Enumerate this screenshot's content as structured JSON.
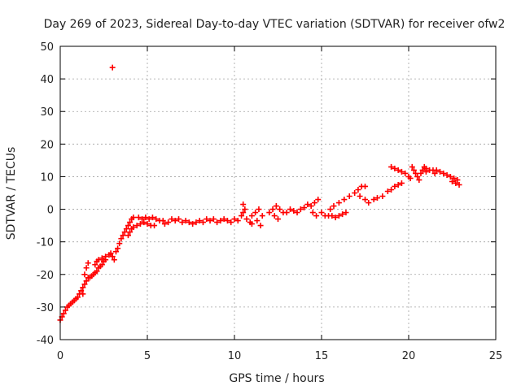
{
  "chart_data": {
    "type": "scatter",
    "title": "Day 269 of 2023, Sidereal Day-to-day VTEC variation (SDTVAR) for receiver ofw2",
    "xlabel": "GPS time / hours",
    "ylabel": "SDTVAR / TECUs",
    "xlim": [
      0,
      25
    ],
    "ylim": [
      -40,
      50
    ],
    "xticks": [
      0,
      5,
      10,
      15,
      20,
      25
    ],
    "yticks": [
      -40,
      -30,
      -20,
      -10,
      0,
      10,
      20,
      30,
      40,
      50
    ],
    "grid": true,
    "marker": "+",
    "color": "#ff0000",
    "series": [
      {
        "name": "SDTVAR",
        "points": [
          [
            0.0,
            -34
          ],
          [
            0.1,
            -33
          ],
          [
            0.2,
            -32
          ],
          [
            0.3,
            -31
          ],
          [
            0.4,
            -30
          ],
          [
            0.5,
            -29.5
          ],
          [
            0.6,
            -29
          ],
          [
            0.7,
            -28.5
          ],
          [
            0.8,
            -28
          ],
          [
            0.9,
            -27.5
          ],
          [
            1.0,
            -27
          ],
          [
            1.1,
            -26
          ],
          [
            1.2,
            -25
          ],
          [
            1.3,
            -24
          ],
          [
            1.4,
            -23
          ],
          [
            1.5,
            -22
          ],
          [
            1.6,
            -21
          ],
          [
            1.3,
            -26
          ],
          [
            1.4,
            -20
          ],
          [
            1.5,
            -18
          ],
          [
            1.6,
            -16.5
          ],
          [
            1.7,
            -21
          ],
          [
            1.8,
            -20.5
          ],
          [
            1.9,
            -20
          ],
          [
            2.0,
            -19.5
          ],
          [
            2.1,
            -19
          ],
          [
            2.2,
            -18
          ],
          [
            2.3,
            -17.5
          ],
          [
            2.4,
            -17
          ],
          [
            2.5,
            -16
          ],
          [
            2.6,
            -15.5
          ],
          [
            2.0,
            -17
          ],
          [
            2.1,
            -16
          ],
          [
            2.2,
            -15.5
          ],
          [
            2.4,
            -15
          ],
          [
            2.6,
            -14.5
          ],
          [
            2.8,
            -14
          ],
          [
            2.9,
            -13.5
          ],
          [
            3.0,
            -14.5
          ],
          [
            3.1,
            -15.5
          ],
          [
            3.2,
            -13
          ],
          [
            3.3,
            -12
          ],
          [
            3.4,
            -10.5
          ],
          [
            3.5,
            -9
          ],
          [
            3.6,
            -8
          ],
          [
            3.7,
            -7
          ],
          [
            3.8,
            -6
          ],
          [
            3.9,
            -5
          ],
          [
            4.0,
            -4
          ],
          [
            4.1,
            -3
          ],
          [
            4.2,
            -2.5
          ],
          [
            3.9,
            -8
          ],
          [
            4.0,
            -7
          ],
          [
            4.1,
            -6
          ],
          [
            4.2,
            -5.5
          ],
          [
            4.4,
            -5
          ],
          [
            4.6,
            -4.5
          ],
          [
            4.8,
            -4
          ],
          [
            5.0,
            -4.5
          ],
          [
            5.2,
            -5
          ],
          [
            5.4,
            -5
          ],
          [
            4.5,
            -2.5
          ],
          [
            4.7,
            -3
          ],
          [
            4.9,
            -2.5
          ],
          [
            5.1,
            -3
          ],
          [
            5.3,
            -2.5
          ],
          [
            5.5,
            -3
          ],
          [
            5.7,
            -3.5
          ],
          [
            5.9,
            -3.5
          ],
          [
            6.0,
            -4.5
          ],
          [
            6.2,
            -4
          ],
          [
            6.4,
            -3
          ],
          [
            6.6,
            -3.5
          ],
          [
            6.8,
            -3
          ],
          [
            7.0,
            -4
          ],
          [
            7.2,
            -3.5
          ],
          [
            7.4,
            -4
          ],
          [
            7.6,
            -4.5
          ],
          [
            7.8,
            -4
          ],
          [
            8.0,
            -3.5
          ],
          [
            8.2,
            -4
          ],
          [
            8.4,
            -3
          ],
          [
            8.6,
            -3.5
          ],
          [
            8.8,
            -3
          ],
          [
            9.0,
            -4
          ],
          [
            9.2,
            -3.5
          ],
          [
            9.4,
            -3
          ],
          [
            9.6,
            -3.5
          ],
          [
            9.8,
            -4
          ],
          [
            10.0,
            -3
          ],
          [
            10.2,
            -3.5
          ],
          [
            10.4,
            -2
          ],
          [
            10.5,
            -1
          ],
          [
            10.6,
            0
          ],
          [
            10.5,
            1.5
          ],
          [
            10.7,
            -3
          ],
          [
            10.9,
            -4
          ],
          [
            11.0,
            -2
          ],
          [
            11.2,
            -1
          ],
          [
            11.4,
            0
          ],
          [
            11.5,
            -5
          ],
          [
            11.0,
            -4.5
          ],
          [
            11.3,
            -3.5
          ],
          [
            11.6,
            -2
          ],
          [
            12.0,
            -1
          ],
          [
            12.2,
            0
          ],
          [
            12.4,
            1
          ],
          [
            12.6,
            0
          ],
          [
            12.8,
            -1
          ],
          [
            12.5,
            -3
          ],
          [
            12.3,
            -2
          ],
          [
            13.0,
            -1
          ],
          [
            13.2,
            0
          ],
          [
            13.4,
            -0.5
          ],
          [
            13.6,
            -1
          ],
          [
            13.8,
            0
          ],
          [
            14.0,
            0.5
          ],
          [
            14.2,
            1.5
          ],
          [
            14.4,
            1
          ],
          [
            14.6,
            2
          ],
          [
            14.8,
            3
          ],
          [
            14.5,
            -1
          ],
          [
            14.7,
            -2
          ],
          [
            15.0,
            -1
          ],
          [
            15.2,
            -2
          ],
          [
            15.4,
            -2
          ],
          [
            15.6,
            -2
          ],
          [
            15.8,
            -2.5
          ],
          [
            16.0,
            -2
          ],
          [
            16.2,
            -1.5
          ],
          [
            16.4,
            -1
          ],
          [
            15.5,
            0
          ],
          [
            15.7,
            1
          ],
          [
            16.0,
            2
          ],
          [
            16.3,
            3
          ],
          [
            16.6,
            4
          ],
          [
            16.9,
            5
          ],
          [
            17.1,
            6
          ],
          [
            17.3,
            7
          ],
          [
            17.5,
            7
          ],
          [
            17.2,
            4
          ],
          [
            17.5,
            3
          ],
          [
            17.7,
            2
          ],
          [
            18.0,
            3
          ],
          [
            18.2,
            3.5
          ],
          [
            18.5,
            4
          ],
          [
            18.8,
            5.5
          ],
          [
            19.0,
            6
          ],
          [
            19.2,
            7
          ],
          [
            19.4,
            7.5
          ],
          [
            19.6,
            8
          ],
          [
            19.0,
            13
          ],
          [
            19.2,
            12.5
          ],
          [
            19.4,
            12
          ],
          [
            19.6,
            11.5
          ],
          [
            19.8,
            11
          ],
          [
            20.0,
            10
          ],
          [
            20.1,
            9.5
          ],
          [
            20.2,
            13
          ],
          [
            20.3,
            12
          ],
          [
            20.4,
            11
          ],
          [
            20.5,
            10
          ],
          [
            20.6,
            9
          ],
          [
            20.7,
            11
          ],
          [
            20.8,
            12
          ],
          [
            20.9,
            13
          ],
          [
            21.0,
            12.5
          ],
          [
            21.2,
            12
          ],
          [
            21.4,
            12
          ],
          [
            21.6,
            12
          ],
          [
            21.8,
            11.5
          ],
          [
            22.0,
            11
          ],
          [
            22.2,
            10.5
          ],
          [
            22.4,
            10
          ],
          [
            22.6,
            9.5
          ],
          [
            22.8,
            9
          ],
          [
            22.7,
            8
          ],
          [
            22.9,
            7.5
          ],
          [
            22.5,
            8.5
          ],
          [
            21.5,
            11
          ],
          [
            21.0,
            11.5
          ],
          [
            3.0,
            43.5
          ]
        ]
      }
    ]
  }
}
